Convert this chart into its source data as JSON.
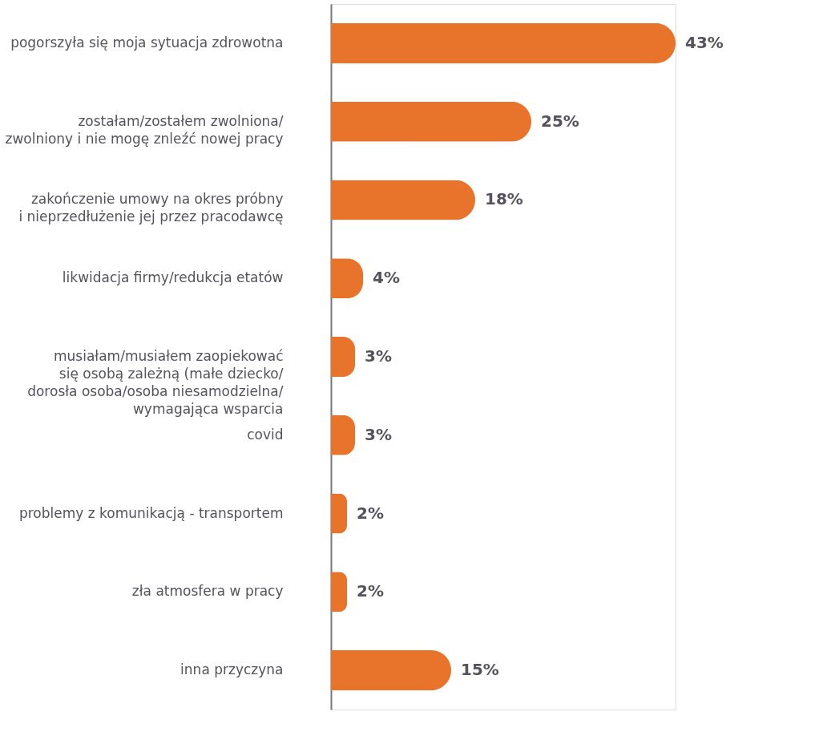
{
  "chart_data": {
    "type": "bar",
    "orientation": "horizontal",
    "categories": [
      "pogorszyła się moja sytuacja zdrowotna",
      "zostałam/zostałem zwolniona/\nzwolniony i nie mogę znleźć nowej pracy",
      "zakończenie umowy na okres próbny\ni nieprzedłużenie jej przez pracodawcę",
      "likwidacja firmy/redukcja etatów",
      "musiałam/musiałem zaopiekować\nsię osobą zależną (małe dziecko/\ndorosła osoba/osoba niesamodzielna/\nwymagająca wsparcia",
      "covid",
      "problemy z komunikacją - transportem",
      "zła atmosfera w pracy",
      "inna przyczyna"
    ],
    "values": [
      43,
      25,
      18,
      4,
      3,
      3,
      2,
      2,
      15
    ],
    "value_labels": [
      "43%",
      "25%",
      "18%",
      "4%",
      "3%",
      "3%",
      "2%",
      "2%",
      "15%"
    ],
    "color": "#e8732a"
  }
}
